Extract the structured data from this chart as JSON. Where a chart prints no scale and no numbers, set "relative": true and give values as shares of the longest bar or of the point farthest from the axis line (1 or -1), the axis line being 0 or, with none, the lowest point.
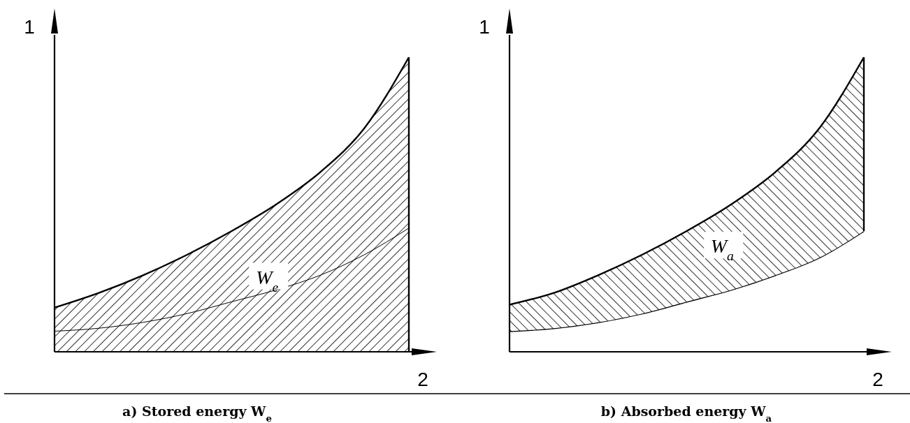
{
  "chart_data": [
    {
      "type": "area",
      "relative": true,
      "title": "a) Stored energy W$_{e}$",
      "xlabel": "2",
      "ylabel": "1",
      "annotations": [
        "W$_{e}$"
      ],
      "categories": [
        null,
        null,
        null,
        null,
        null,
        null,
        null,
        null,
        null
      ],
      "series": [
        {
          "color": "#000000",
          "values": [
            0.15,
            0.2,
            0.26,
            0.33,
            0.41,
            0.5,
            0.61,
            0.76,
            1.0
          ]
        },
        {
          "type": "line",
          "color": "#000000",
          "values": [
            0.07,
            0.08,
            0.1,
            0.13,
            0.17,
            0.21,
            0.26,
            0.33,
            0.42
          ]
        }
      ]
    },
    {
      "type": "area",
      "relative": true,
      "stacked": true,
      "title": "b) Absorbed energy W$_{a}$",
      "xlabel": "2",
      "ylabel": "1",
      "annotations": [
        "W$_{a}$"
      ],
      "categories": [
        null,
        null,
        null,
        null,
        null,
        null,
        null,
        null,
        null
      ],
      "series": [
        {
          "color": "#ffffff",
          "values": [
            0.07,
            0.08,
            0.1,
            0.13,
            0.17,
            0.21,
            0.26,
            0.32,
            0.41
          ]
        },
        {
          "color": "#000000",
          "values": [
            0.09,
            0.12,
            0.16,
            0.2,
            0.24,
            0.29,
            0.35,
            0.44,
            0.59
          ]
        }
      ]
    }
  ]
}
